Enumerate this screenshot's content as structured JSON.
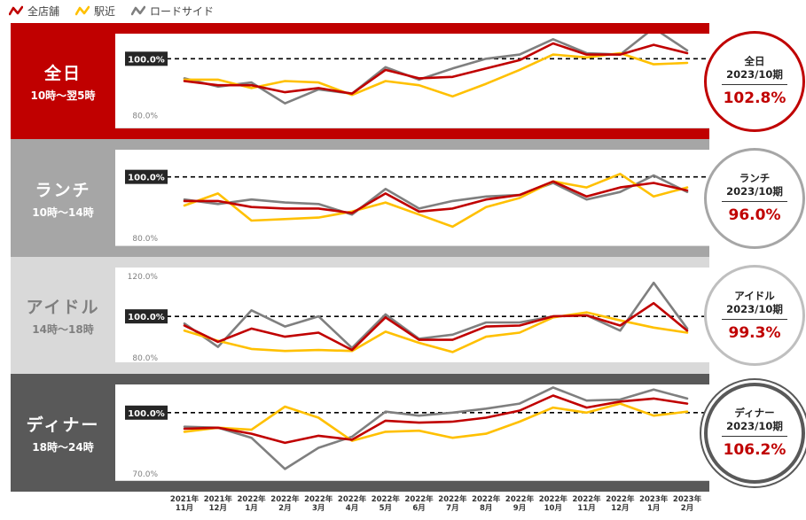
{
  "legend": [
    {
      "name": "全店舗",
      "color": "#c00000"
    },
    {
      "name": "駅近",
      "color": "#ffc000"
    },
    {
      "name": "ロードサイド",
      "color": "#7f7f7f"
    }
  ],
  "badge_period": "2023/10期",
  "chart_data": [
    {
      "type": "line",
      "band": {
        "name": "全日",
        "hours": "10時～翌5時",
        "bg": "#c00000",
        "text_color": "#ffffff",
        "badge_border": "#c00000"
      },
      "ylim": [
        75,
        109
      ],
      "yticks": [
        {
          "value": 80,
          "label": "80.0%"
        }
      ],
      "reference": {
        "value": 100,
        "label": "100.0%"
      },
      "badge": {
        "title": "全日",
        "value": "102.8%"
      },
      "series": [
        {
          "name": "全店舗",
          "values": [
            92.0,
            90.5,
            90.5,
            88.0,
            89.5,
            87.5,
            96.0,
            93.0,
            93.5,
            96.5,
            99.5,
            105.5,
            101.5,
            101.5,
            105.0,
            102.0
          ]
        },
        {
          "name": "駅近",
          "values": [
            92.5,
            92.5,
            89.5,
            92.0,
            91.5,
            87.0,
            92.0,
            90.5,
            86.5,
            91.0,
            96.0,
            101.5,
            100.5,
            102.0,
            98.0,
            98.5
          ]
        },
        {
          "name": "ロードサイド",
          "values": [
            93.0,
            90.0,
            91.5,
            84.0,
            89.0,
            87.5,
            97.0,
            92.5,
            96.5,
            100.0,
            101.5,
            107.0,
            102.0,
            101.5,
            111.0,
            103.0
          ]
        }
      ]
    },
    {
      "type": "line",
      "band": {
        "name": "ランチ",
        "hours": "10時～14時",
        "bg": "#a6a6a6",
        "text_color": "#ffffff",
        "badge_border": "#a6a6a6"
      },
      "ylim": [
        77,
        109
      ],
      "yticks": [
        {
          "value": 80,
          "label": "80.0%"
        }
      ],
      "reference": {
        "value": 100,
        "label": "100.0%"
      },
      "badge": {
        "title": "ランチ",
        "value": "96.0%"
      },
      "series": [
        {
          "name": "全店舗",
          "values": [
            92.0,
            92.0,
            90.0,
            89.5,
            89.5,
            88.0,
            94.5,
            88.5,
            89.5,
            92.5,
            94.0,
            98.5,
            93.5,
            96.5,
            98.0,
            95.5
          ]
        },
        {
          "name": "駅近",
          "values": [
            90.5,
            94.5,
            85.5,
            86.0,
            86.5,
            88.5,
            91.5,
            87.5,
            83.5,
            90.0,
            93.0,
            98.5,
            96.5,
            101.0,
            93.5,
            96.5
          ]
        },
        {
          "name": "ロードサイド",
          "values": [
            92.5,
            91.0,
            92.5,
            91.5,
            91.0,
            87.5,
            96.0,
            89.5,
            92.0,
            93.5,
            94.0,
            98.0,
            92.5,
            95.0,
            100.5,
            95.0
          ]
        }
      ]
    },
    {
      "type": "line",
      "band": {
        "name": "アイドル",
        "hours": "14時～18時",
        "bg": "#d9d9d9",
        "text_color": "#7f7f7f",
        "badge_border": "#bfbfbf"
      },
      "ylim": [
        77,
        124
      ],
      "yticks": [
        {
          "value": 80,
          "label": "80.0%"
        },
        {
          "value": 120,
          "label": "120.0%"
        }
      ],
      "reference": {
        "value": 100,
        "label": "100.0%"
      },
      "badge": {
        "title": "アイドル",
        "value": "99.3%"
      },
      "series": [
        {
          "name": "全店舗",
          "values": [
            95.5,
            87.5,
            94.0,
            90.0,
            92.0,
            83.5,
            99.5,
            88.5,
            88.5,
            95.0,
            95.5,
            100.0,
            100.5,
            95.5,
            106.5,
            93.0
          ]
        },
        {
          "name": "駅近",
          "values": [
            93.0,
            88.0,
            84.0,
            83.0,
            83.5,
            83.0,
            92.5,
            87.0,
            82.5,
            90.0,
            92.0,
            99.5,
            102.0,
            98.0,
            94.5,
            92.0
          ]
        },
        {
          "name": "ロードサイド",
          "values": [
            96.5,
            85.0,
            103.0,
            95.0,
            100.0,
            84.5,
            101.0,
            89.0,
            91.0,
            97.0,
            97.0,
            100.0,
            100.5,
            93.0,
            116.5,
            94.0
          ]
        }
      ]
    },
    {
      "type": "line",
      "band": {
        "name": "ディナー",
        "hours": "18時～24時",
        "bg": "#595959",
        "text_color": "#ffffff",
        "badge_border": "#595959"
      },
      "ylim": [
        66,
        114
      ],
      "yticks": [
        {
          "value": 70,
          "label": "70.0%"
        }
      ],
      "reference": {
        "value": 100,
        "label": "100.0%"
      },
      "badge": {
        "title": "ディナー",
        "value": "106.2%"
      },
      "series": [
        {
          "name": "全店舗",
          "values": [
            92.0,
            92.5,
            89.5,
            85.0,
            88.5,
            86.5,
            96.0,
            95.0,
            95.5,
            97.5,
            101.0,
            108.5,
            102.5,
            105.5,
            107.0,
            104.5
          ]
        },
        {
          "name": "駅近",
          "values": [
            90.5,
            92.5,
            91.5,
            103.0,
            97.5,
            86.0,
            90.5,
            91.0,
            87.5,
            89.5,
            95.5,
            102.5,
            100.0,
            104.5,
            98.5,
            100.5
          ]
        },
        {
          "name": "ロードサイド",
          "values": [
            93.0,
            92.5,
            87.5,
            72.0,
            82.5,
            88.0,
            100.5,
            98.5,
            100.0,
            102.0,
            104.5,
            112.5,
            106.0,
            106.5,
            111.5,
            107.0
          ]
        }
      ]
    }
  ],
  "x_axis": [
    {
      "year": "2021年",
      "month": "11月"
    },
    {
      "year": "2021年",
      "month": "12月"
    },
    {
      "year": "2022年",
      "month": "1月"
    },
    {
      "year": "2022年",
      "month": "2月"
    },
    {
      "year": "2022年",
      "month": "3月"
    },
    {
      "year": "2022年",
      "month": "4月"
    },
    {
      "year": "2022年",
      "month": "5月"
    },
    {
      "year": "2022年",
      "month": "6月"
    },
    {
      "year": "2022年",
      "month": "7月"
    },
    {
      "year": "2022年",
      "month": "8月"
    },
    {
      "year": "2022年",
      "month": "9月"
    },
    {
      "year": "2022年",
      "month": "10月"
    },
    {
      "year": "2022年",
      "month": "11月"
    },
    {
      "year": "2022年",
      "month": "12月"
    },
    {
      "year": "2023年",
      "month": "1月"
    },
    {
      "year": "2023年",
      "month": "2月"
    }
  ]
}
